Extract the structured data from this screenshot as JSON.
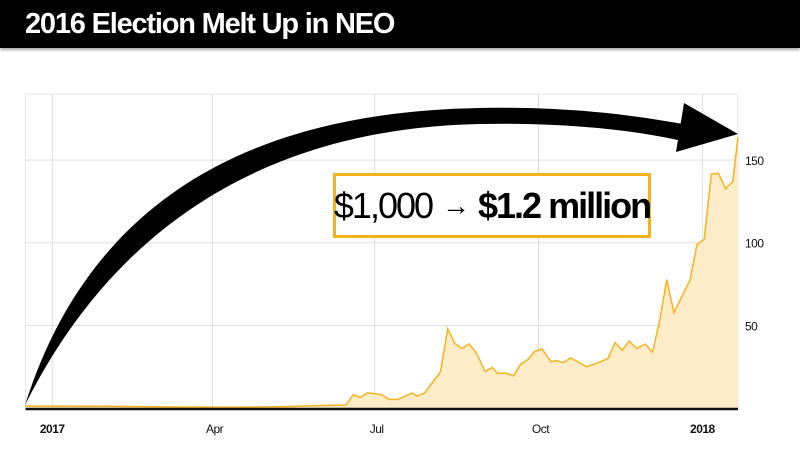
{
  "header": {
    "title": "2016 Election Melt Up in NEO"
  },
  "callout": {
    "from": "$1,000",
    "arrow": "→",
    "to": "$1.2 million"
  },
  "colors": {
    "line": "#f7b21b",
    "fill": "#fdecc8",
    "arrow": "#000000",
    "header": "#000000",
    "grid": "#dddddd"
  },
  "chart_data": {
    "type": "area",
    "title": "2016 Election Melt Up in NEO",
    "xlabel": "",
    "ylabel": "",
    "xlim": [
      "2016-12-17",
      "2018-01-21"
    ],
    "ylim": [
      0,
      190
    ],
    "grid": true,
    "y_axis_side": "right",
    "x_ticks": [
      {
        "date": "2017-01-01",
        "label": "2017",
        "bold": true
      },
      {
        "date": "2017-04-01",
        "label": "Apr",
        "bold": false
      },
      {
        "date": "2017-07-01",
        "label": "Jul",
        "bold": false
      },
      {
        "date": "2017-10-01",
        "label": "Oct",
        "bold": false
      },
      {
        "date": "2018-01-01",
        "label": "2018",
        "bold": true
      }
    ],
    "y_ticks": [
      50,
      100,
      150
    ],
    "series": [
      {
        "points": [
          [
            "2016-12-17",
            1.2
          ],
          [
            "2017-02-01",
            1.0
          ],
          [
            "2017-03-15",
            0.6
          ],
          [
            "2017-04-15",
            0.5
          ],
          [
            "2017-05-09",
            0.8
          ],
          [
            "2017-06-01",
            1.5
          ],
          [
            "2017-06-15",
            1.8
          ],
          [
            "2017-06-19",
            8
          ],
          [
            "2017-06-23",
            6.4
          ],
          [
            "2017-06-27",
            9.2
          ],
          [
            "2017-07-05",
            8
          ],
          [
            "2017-07-09",
            5.2
          ],
          [
            "2017-07-14",
            5.2
          ],
          [
            "2017-07-17",
            6.6
          ],
          [
            "2017-07-22",
            9
          ],
          [
            "2017-07-25",
            7.2
          ],
          [
            "2017-07-29",
            9
          ],
          [
            "2017-08-07",
            21.9
          ],
          [
            "2017-08-11",
            48
          ],
          [
            "2017-08-15",
            39
          ],
          [
            "2017-08-19",
            36
          ],
          [
            "2017-08-23",
            38.7
          ],
          [
            "2017-08-27",
            33.5
          ],
          [
            "2017-09-01",
            22
          ],
          [
            "2017-09-05",
            24.5
          ],
          [
            "2017-09-08",
            21
          ],
          [
            "2017-09-13",
            21
          ],
          [
            "2017-09-17",
            19.5
          ],
          [
            "2017-09-21",
            26.5
          ],
          [
            "2017-09-25",
            29.3
          ],
          [
            "2017-09-29",
            34.3
          ],
          [
            "2017-10-03",
            35.7
          ],
          [
            "2017-10-08",
            28
          ],
          [
            "2017-10-11",
            28.7
          ],
          [
            "2017-10-15",
            27.5
          ],
          [
            "2017-10-19",
            30.3
          ],
          [
            "2017-10-28",
            25
          ],
          [
            "2017-11-05",
            28
          ],
          [
            "2017-11-09",
            30
          ],
          [
            "2017-11-13",
            39.6
          ],
          [
            "2017-11-17",
            35
          ],
          [
            "2017-11-21",
            40.5
          ],
          [
            "2017-11-25",
            36
          ],
          [
            "2017-11-30",
            38.7
          ],
          [
            "2017-12-04",
            33.7
          ],
          [
            "2017-12-08",
            52.6
          ],
          [
            "2017-12-12",
            77.7
          ],
          [
            "2017-12-16",
            57.6
          ],
          [
            "2017-12-25",
            77.3
          ],
          [
            "2017-12-29",
            99
          ],
          [
            "2018-01-02",
            102
          ],
          [
            "2018-01-06",
            141.5
          ],
          [
            "2018-01-10",
            142
          ],
          [
            "2018-01-14",
            132.7
          ],
          [
            "2018-01-18",
            137
          ],
          [
            "2018-01-21",
            164
          ]
        ]
      }
    ]
  }
}
